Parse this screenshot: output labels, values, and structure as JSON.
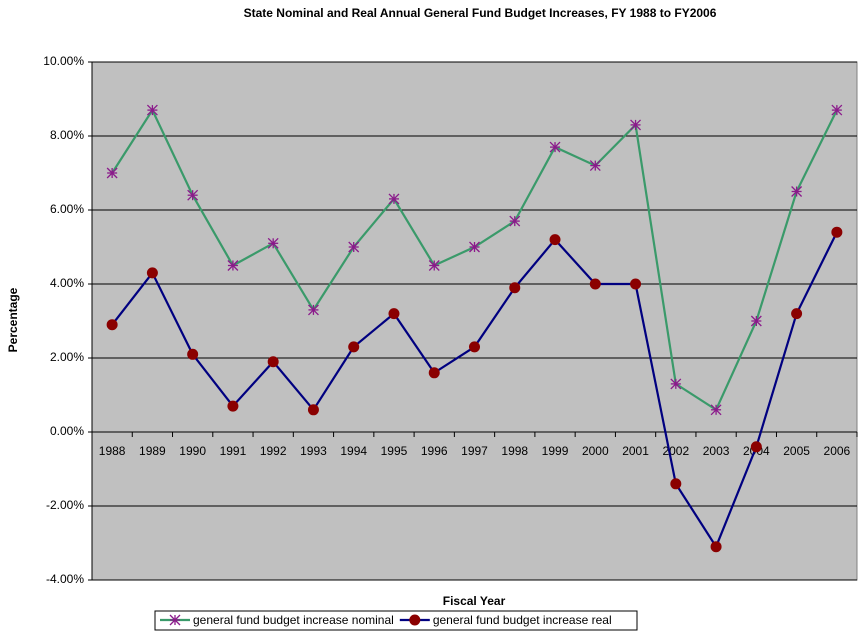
{
  "chart_data": {
    "type": "line",
    "title": "State Nominal and Real Annual General Fund Budget Increases, FY 1988 to FY2006",
    "x_label": "Fiscal Year",
    "y_label": "Percentage",
    "categories": [
      "1988",
      "1989",
      "1990",
      "1991",
      "1992",
      "1993",
      "1994",
      "1995",
      "1996",
      "1997",
      "1998",
      "1999",
      "2000",
      "2001",
      "2002",
      "2003",
      "2004",
      "2005",
      "2006"
    ],
    "series": [
      {
        "name": "general fund budget increase nominal",
        "color": "#3a9a6a",
        "marker_color": "#8b1a8b",
        "marker": "asterisk",
        "values": [
          7.0,
          8.7,
          6.4,
          4.5,
          5.1,
          3.3,
          5.0,
          6.3,
          4.5,
          5.0,
          5.7,
          7.7,
          7.2,
          8.3,
          1.3,
          0.6,
          3.0,
          6.5,
          8.7
        ]
      },
      {
        "name": "general fund budget increase real",
        "color": "#000080",
        "marker_color": "#8b0000",
        "marker": "circle",
        "values": [
          2.9,
          4.3,
          2.1,
          0.7,
          1.9,
          0.6,
          2.3,
          3.2,
          1.6,
          2.3,
          3.9,
          5.2,
          4.0,
          4.0,
          -1.4,
          -3.1,
          -0.4,
          3.2,
          5.4
        ]
      }
    ],
    "ylim": [
      -4,
      10
    ],
    "yticks": [
      {
        "value": -4,
        "label": "-4.00%"
      },
      {
        "value": -2,
        "label": "-2.00%"
      },
      {
        "value": 0,
        "label": "0.00%"
      },
      {
        "value": 2,
        "label": "2.00%"
      },
      {
        "value": 4,
        "label": "4.00%"
      },
      {
        "value": 6,
        "label": "6.00%"
      },
      {
        "value": 8,
        "label": "8.00%"
      },
      {
        "value": 10,
        "label": "10.00%"
      }
    ],
    "grid": true,
    "plot_background": "#c0c0c0",
    "legend": "bottom"
  }
}
